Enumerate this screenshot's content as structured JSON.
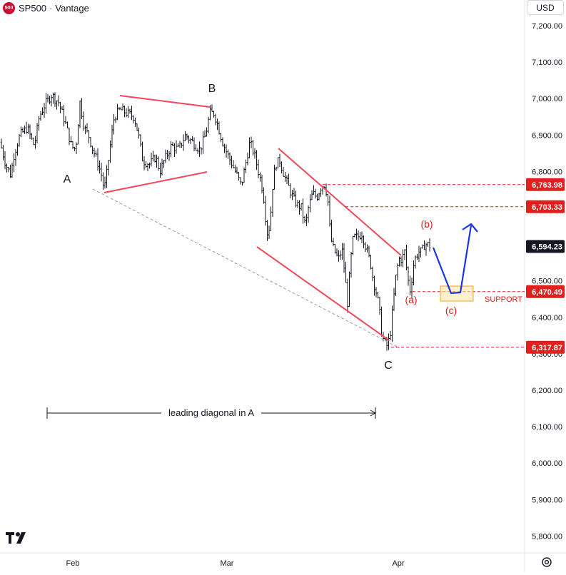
{
  "header": {
    "symbol": "SP500",
    "separator": "·",
    "source": "Vantage",
    "logo_text": "500",
    "logo_color": "#c8102e"
  },
  "currency": "USD",
  "chart_data": {
    "type": "candlestick",
    "y_axis": {
      "ticks": [
        "7,200.00",
        "7,100.00",
        "7,000.00",
        "6,900.00",
        "6,800.00",
        "6,700.00",
        "6,600.00",
        "6,500.00",
        "6,400.00",
        "6,300.00",
        "6,200.00",
        "6,100.00",
        "6,000.00",
        "5,900.00",
        "5,800.00"
      ],
      "ylim": [
        5745,
        7260
      ]
    },
    "x_axis": {
      "ticks": [
        "Feb",
        "Mar",
        "Apr"
      ]
    },
    "grid": false,
    "price_labels": [
      {
        "value": 6763.98,
        "text": "6,763.98",
        "style": "red"
      },
      {
        "value": 6703.33,
        "text": "6,703.33",
        "style": "red"
      },
      {
        "value": 6594.23,
        "text": "6,594.23",
        "style": "dark"
      },
      {
        "value": 6470.49,
        "text": "6,470.49",
        "style": "red"
      },
      {
        "value": 6317.87,
        "text": "6,317.87",
        "style": "red"
      }
    ],
    "wave_labels": [
      {
        "text": "A",
        "color": "#131722"
      },
      {
        "text": "B",
        "color": "#131722"
      },
      {
        "text": "C",
        "color": "#131722"
      },
      {
        "text": "(a)",
        "color": "#e0201c"
      },
      {
        "text": "(b)",
        "color": "#e0201c"
      },
      {
        "text": "(c)",
        "color": "#e0201c"
      }
    ],
    "annotations": {
      "support": "SUPPORT",
      "measure": "leading diagonal in A"
    },
    "series_anchors": [
      [
        0,
        6880
      ],
      [
        8,
        6820
      ],
      [
        15,
        6790
      ],
      [
        20,
        6850
      ],
      [
        28,
        6900
      ],
      [
        38,
        6920
      ],
      [
        48,
        6870
      ],
      [
        55,
        6950
      ],
      [
        62,
        6980
      ],
      [
        72,
        7010
      ],
      [
        82,
        6990
      ],
      [
        92,
        6930
      ],
      [
        100,
        6870
      ],
      [
        106,
        6860
      ],
      [
        112,
        6990
      ],
      [
        118,
        6920
      ],
      [
        124,
        6900
      ],
      [
        130,
        6860
      ],
      [
        136,
        6830
      ],
      [
        142,
        6790
      ],
      [
        146,
        6750
      ],
      [
        150,
        6800
      ],
      [
        155,
        6880
      ],
      [
        160,
        6950
      ],
      [
        168,
        6970
      ],
      [
        178,
        6960
      ],
      [
        188,
        6950
      ],
      [
        194,
        6900
      ],
      [
        200,
        6830
      ],
      [
        210,
        6820
      ],
      [
        218,
        6840
      ],
      [
        224,
        6800
      ],
      [
        230,
        6830
      ],
      [
        240,
        6870
      ],
      [
        250,
        6860
      ],
      [
        260,
        6900
      ],
      [
        270,
        6880
      ],
      [
        280,
        6860
      ],
      [
        288,
        6900
      ],
      [
        294,
        6960
      ],
      [
        300,
        6960
      ],
      [
        306,
        6920
      ],
      [
        312,
        6880
      ],
      [
        318,
        6850
      ],
      [
        325,
        6820
      ],
      [
        332,
        6790
      ],
      [
        338,
        6760
      ],
      [
        344,
        6820
      ],
      [
        350,
        6880
      ],
      [
        356,
        6850
      ],
      [
        362,
        6800
      ],
      [
        366,
        6770
      ],
      [
        370,
        6720
      ],
      [
        374,
        6630
      ],
      [
        378,
        6650
      ],
      [
        382,
        6760
      ],
      [
        386,
        6820
      ],
      [
        392,
        6830
      ],
      [
        398,
        6790
      ],
      [
        404,
        6760
      ],
      [
        410,
        6730
      ],
      [
        416,
        6710
      ],
      [
        422,
        6700
      ],
      [
        428,
        6650
      ],
      [
        432,
        6700
      ],
      [
        438,
        6740
      ],
      [
        444,
        6730
      ],
      [
        450,
        6760
      ],
      [
        455,
        6765
      ],
      [
        459,
        6730
      ],
      [
        463,
        6620
      ],
      [
        467,
        6590
      ],
      [
        471,
        6570
      ],
      [
        475,
        6560
      ],
      [
        479,
        6590
      ],
      [
        483,
        6520
      ],
      [
        487,
        6440
      ],
      [
        491,
        6550
      ],
      [
        495,
        6620
      ],
      [
        501,
        6620
      ],
      [
        507,
        6630
      ],
      [
        513,
        6590
      ],
      [
        519,
        6550
      ],
      [
        523,
        6500
      ],
      [
        527,
        6470
      ],
      [
        531,
        6430
      ],
      [
        535,
        6350
      ],
      [
        539,
        6330
      ],
      [
        543,
        6320
      ],
      [
        547,
        6360
      ],
      [
        551,
        6440
      ],
      [
        555,
        6520
      ],
      [
        559,
        6560
      ],
      [
        563,
        6560
      ],
      [
        567,
        6580
      ],
      [
        571,
        6510
      ],
      [
        575,
        6470
      ],
      [
        579,
        6540
      ],
      [
        583,
        6570
      ],
      [
        587,
        6580
      ],
      [
        591,
        6580
      ],
      [
        595,
        6600
      ],
      [
        599,
        6600
      ],
      [
        603,
        6594
      ]
    ]
  }
}
